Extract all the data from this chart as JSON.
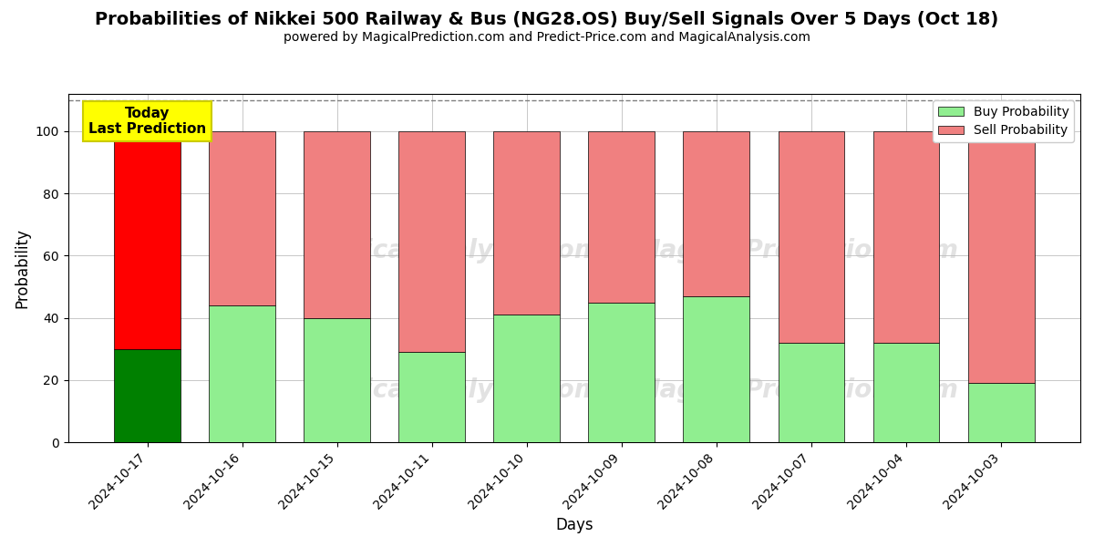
{
  "title": "Probabilities of Nikkei 500 Railway & Bus (NG28.OS) Buy/Sell Signals Over 5 Days (Oct 18)",
  "subtitle": "powered by MagicalPrediction.com and Predict-Price.com and MagicalAnalysis.com",
  "xlabel": "Days",
  "ylabel": "Probability",
  "categories": [
    "2024-10-17",
    "2024-10-16",
    "2024-10-15",
    "2024-10-11",
    "2024-10-10",
    "2024-10-09",
    "2024-10-08",
    "2024-10-07",
    "2024-10-04",
    "2024-10-03"
  ],
  "buy_values": [
    30,
    44,
    40,
    29,
    41,
    45,
    47,
    32,
    32,
    19
  ],
  "sell_values": [
    70,
    56,
    60,
    71,
    59,
    55,
    53,
    68,
    68,
    81
  ],
  "today_buy_color": "#008000",
  "today_sell_color": "#ff0000",
  "buy_color": "#90EE90",
  "sell_color": "#F08080",
  "today_label_bg": "#ffff00",
  "today_label_text": "Today\nLast Prediction",
  "legend_buy": "Buy Probability",
  "legend_sell": "Sell Probability",
  "ylim": [
    0,
    112
  ],
  "yticks": [
    0,
    20,
    40,
    60,
    80,
    100
  ],
  "dashed_line_y": 110,
  "watermark_line1": "MagicalAnalysis.com",
  "watermark_line2": "MagicalPrediction.com",
  "figsize": [
    12,
    6
  ],
  "dpi": 100
}
